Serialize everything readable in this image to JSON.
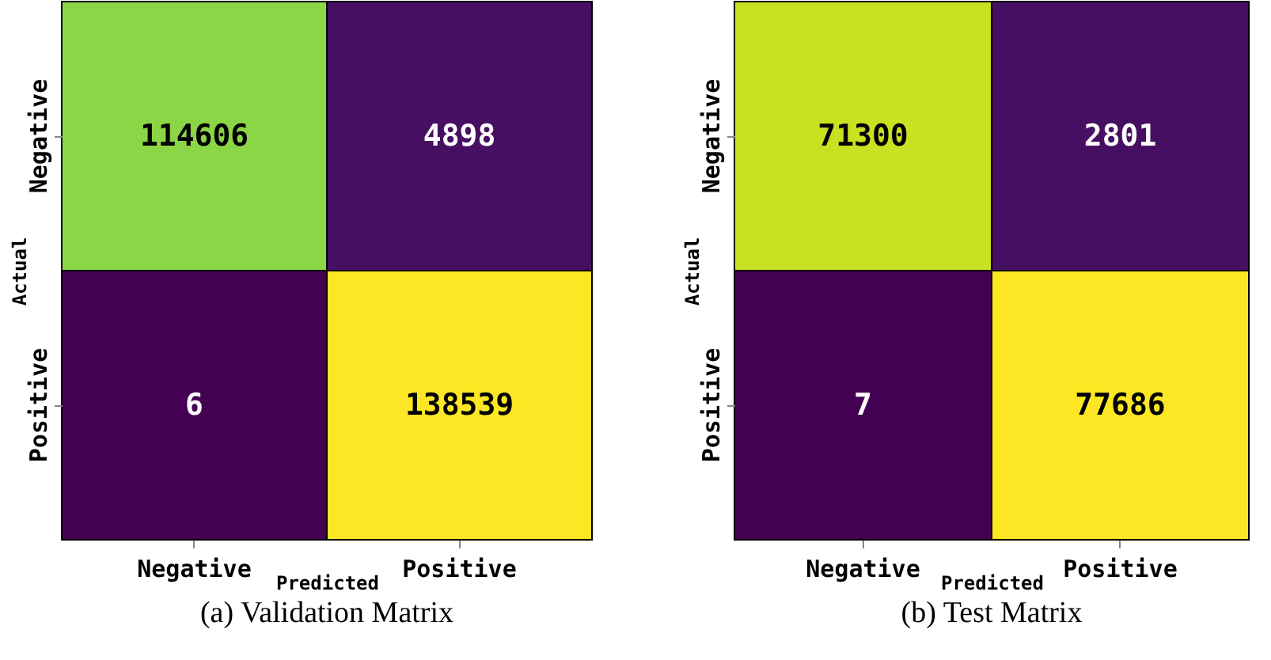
{
  "chart_data": [
    {
      "type": "heatmap",
      "title": "(a) Validation Matrix",
      "xlabel": "Predicted",
      "ylabel": "Actual",
      "categories": [
        "Negative",
        "Positive"
      ],
      "y_categories": [
        "Negative",
        "Positive"
      ],
      "cells": [
        [
          114606,
          4898
        ],
        [
          6,
          138539
        ]
      ],
      "data_labels": true
    },
    {
      "type": "heatmap",
      "title": "(b) Test Matrix",
      "xlabel": "Predicted",
      "ylabel": "Actual",
      "categories": [
        "Negative",
        "Positive"
      ],
      "y_categories": [
        "Negative",
        "Positive"
      ],
      "cells": [
        [
          71300,
          2801
        ],
        [
          7,
          77686
        ]
      ],
      "data_labels": true
    }
  ]
}
